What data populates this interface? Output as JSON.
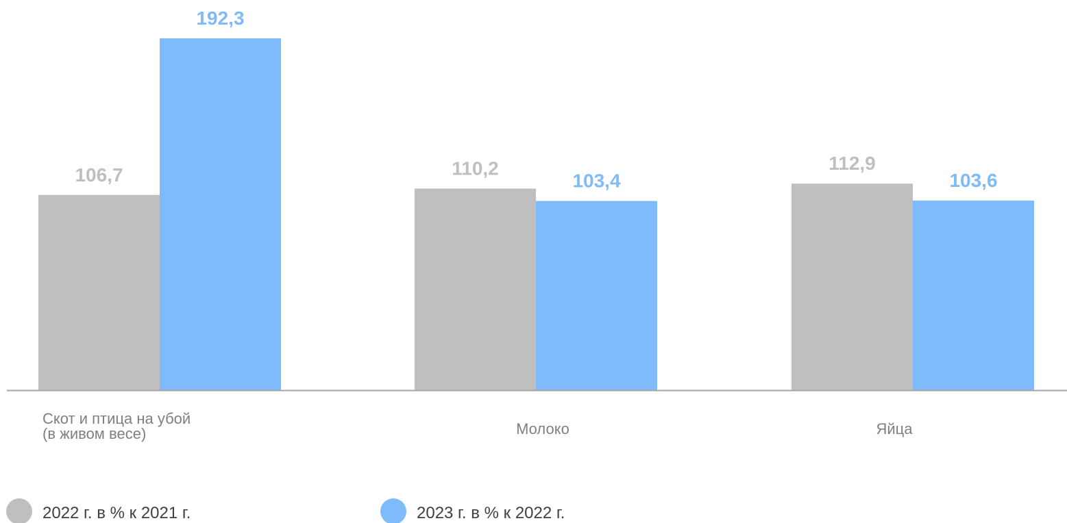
{
  "chart_data": {
    "type": "bar",
    "categories": [
      "Скот и птица на убой\n(в живом весе)",
      "Молоко",
      "Яйца"
    ],
    "series": [
      {
        "name": "2022 г. в % к 2021 г.",
        "color": "#bfbfbf",
        "values": [
          106.7,
          110.2,
          112.9
        ],
        "labels": [
          "106,7",
          "110,2",
          "112,9"
        ]
      },
      {
        "name": "2023 г. в % к 2022 г.",
        "color": "#7fbafa",
        "values": [
          192.3,
          103.4,
          103.6
        ],
        "labels": [
          "192,3",
          "103,4",
          "103,6"
        ]
      }
    ],
    "ylim": [
      0,
      200
    ],
    "grid": false,
    "legend": "bottom-left",
    "axis_color": "#a6a6a6"
  }
}
